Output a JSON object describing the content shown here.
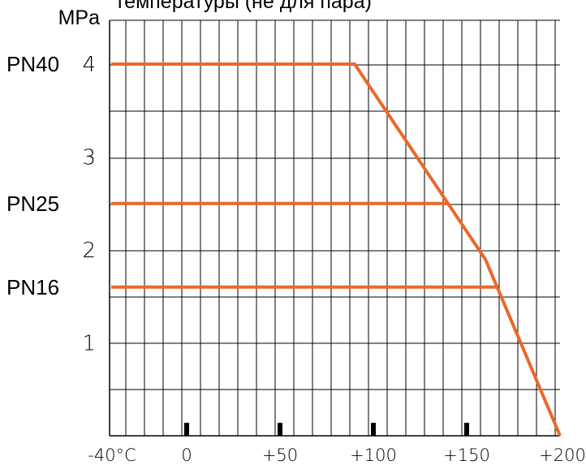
{
  "chart_data": {
    "type": "line",
    "title": "температуры (не для пара)",
    "ylabel": "MPa",
    "xlabel": "",
    "xlim": [
      -40,
      200
    ],
    "ylim": [
      0,
      4.7
    ],
    "x_ticks": [
      {
        "value": -40,
        "label": "-40°C"
      },
      {
        "value": 0,
        "label": "0"
      },
      {
        "value": 50,
        "label": "+50"
      },
      {
        "value": 100,
        "label": "+100"
      },
      {
        "value": 150,
        "label": "+150"
      },
      {
        "value": 200,
        "label": "+200"
      }
    ],
    "y_ticks": [
      {
        "value": 1,
        "label": "1"
      },
      {
        "value": 2,
        "label": "2"
      },
      {
        "value": 3,
        "label": "3"
      },
      {
        "value": 4,
        "label": "4"
      }
    ],
    "grid": true,
    "line_color": "#e8692c",
    "series": [
      {
        "name": "PN40",
        "points": [
          [
            -40,
            4.0
          ],
          [
            90,
            4.0
          ],
          [
            140,
            2.5
          ],
          [
            160,
            1.9
          ],
          [
            200,
            0
          ]
        ]
      },
      {
        "name": "PN25",
        "points": [
          [
            -40,
            2.5
          ],
          [
            140,
            2.5
          ]
        ]
      },
      {
        "name": "PN16",
        "points": [
          [
            -40,
            1.6
          ],
          [
            167,
            1.6
          ]
        ]
      }
    ]
  }
}
